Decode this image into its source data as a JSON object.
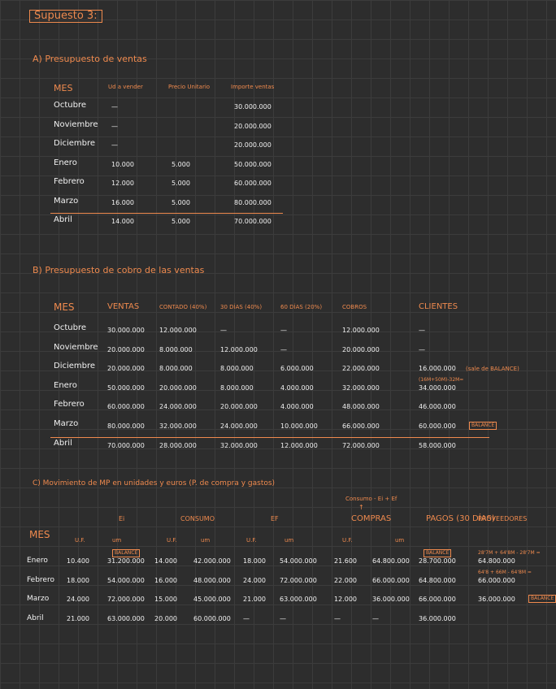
{
  "title": "Supuesto 3:",
  "section_a": {
    "title": "A) Presupuesto de ventas",
    "headers": [
      "MES",
      "Ud a vender",
      "Precio Unitario",
      "Importe ventas"
    ],
    "rows": [
      [
        "Octubre",
        "—",
        null,
        "30.000.000"
      ],
      [
        "Noviembre",
        "—",
        null,
        "20.000.000"
      ],
      [
        "Diciembre",
        "—",
        null,
        "20.000.000"
      ],
      [
        "Enero",
        "10.000",
        "5.000",
        "50.000.000"
      ],
      [
        "Febrero",
        "12.000",
        "5.000",
        "60.000.000"
      ],
      [
        "Marzo",
        "16.000",
        "5.000",
        "80.000.000"
      ],
      [
        "Abril",
        "14.000",
        "5.000",
        "70.000.000"
      ]
    ]
  },
  "section_b": {
    "title": "B) Presupuesto de cobro de las ventas",
    "headers": [
      "MES",
      "VENTAS",
      "CONTADO (40%)",
      "30 DÍAS (40%)",
      "60 DÍAS (20%)",
      "COBROS",
      "CLIENTES"
    ],
    "rows": [
      [
        "Octubre",
        "30.000.000",
        "12.000.000",
        "—",
        "—",
        "12.000.000",
        "—"
      ],
      [
        "Noviembre",
        "20.000.000",
        "8.000.000",
        "12.000.000",
        "—",
        "20.000.000",
        "—"
      ],
      [
        "Diciembre",
        "20.000.000",
        "8.000.000",
        "8.000.000",
        "6.000.000",
        "22.000.000",
        {
          "value": "16.000.000",
          "side": "(sale de BALANCE)"
        }
      ],
      [
        "Enero",
        "50.000.000",
        "20.000.000",
        "8.000.000",
        "4.000.000",
        "32.000.000",
        {
          "note": "(16M+50M)-32M=",
          "value": "34.000.000"
        }
      ],
      [
        "Febrero",
        "60.000.000",
        "24.000.000",
        "20.000.000",
        "4.000.000",
        "48.000.000",
        "46.000.000"
      ],
      [
        "Marzo",
        "80.000.000",
        "32.000.000",
        "24.000.000",
        "10.000.000",
        "66.000.000",
        {
          "value": "60.000.000",
          "tag": "BALANCE"
        }
      ],
      [
        "Abril",
        "70.000.000",
        "28.000.000",
        "32.000.000",
        "12.000.000",
        "72.000.000",
        "58.000.000"
      ]
    ]
  },
  "section_c": {
    "title": "C) Movimiento de MP en unidades y euros (P. de compra y gastos)",
    "formula": "Consumo - Ei + Ef",
    "groups": [
      "Ei",
      "CONSUMO",
      "EF",
      "COMPRAS",
      "PAGOS (30 DÍAS)",
      "PROVEEDORES"
    ],
    "subheaders": [
      "MES",
      "U.F.",
      "um",
      "U.F.",
      "um",
      "U.F.",
      "um",
      "U.F.",
      "um"
    ],
    "rows": [
      [
        "Enero",
        "10.400",
        {
          "value": "31.200.000",
          "tag": "BALANCE",
          "tagtop": true
        },
        "14.000",
        "42.000.000",
        "18.000",
        "54.000.000",
        "21.600",
        "64.800.000",
        {
          "value": "28.700.000",
          "tag": "BALANCE",
          "tagtop": true
        },
        {
          "note": "28'7M + 64'8M - 28'7M =",
          "value": "64.800.000"
        }
      ],
      [
        "Febrero",
        "18.000",
        "54.000.000",
        "16.000",
        "48.000.000",
        "24.000",
        "72.000.000",
        "22.000",
        "66.000.000",
        "64.800.000",
        {
          "note": "64'8 + 66M - 64'8M =",
          "value": "66.000.000"
        }
      ],
      [
        "Marzo",
        "24.000",
        "72.000.000",
        "15.000",
        "45.000.000",
        "21.000",
        "63.000.000",
        "12.000",
        "36.000.000",
        "66.000.000",
        {
          "value": "36.000.000",
          "tag": "BALANCE"
        }
      ],
      [
        "Abril",
        "21.000",
        "63.000.000",
        "20.000",
        "60.000.000",
        "—",
        "—",
        "—",
        "—",
        "36.000.000",
        null
      ]
    ]
  }
}
